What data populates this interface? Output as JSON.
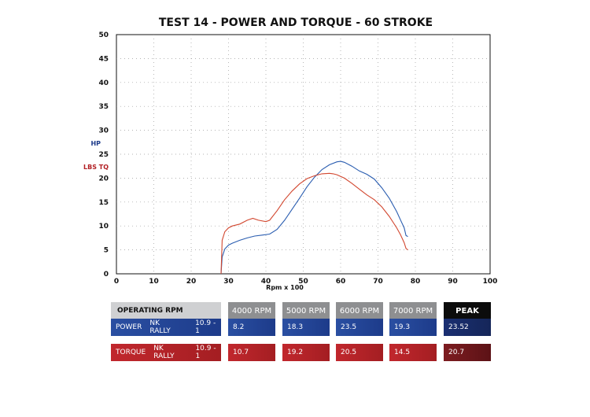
{
  "chart_data": {
    "type": "line",
    "title": "TEST 14 - POWER AND TORQUE - 60 STROKE",
    "xlabel": "Rpm x 100",
    "ylabel_power": "HP",
    "ylabel_torque": "LBS TQ",
    "xlim": [
      0,
      100
    ],
    "ylim": [
      0,
      50
    ],
    "xticks": [
      0,
      10,
      20,
      30,
      40,
      50,
      60,
      70,
      80,
      90,
      100
    ],
    "yticks": [
      0,
      5,
      10,
      15,
      20,
      25,
      30,
      35,
      40,
      45,
      50
    ],
    "grid": true,
    "series": [
      {
        "name": "HP",
        "color": "#2a5db0",
        "x": [
          28,
          28.3,
          29,
          30,
          31,
          33,
          35,
          37,
          39,
          41,
          43,
          45,
          47,
          49,
          51,
          53,
          55,
          57,
          59,
          60,
          61,
          63,
          65,
          67,
          69,
          71,
          73,
          75,
          76,
          77,
          77.5,
          78
        ],
        "y": [
          0,
          3.5,
          5.2,
          6.0,
          6.4,
          7.0,
          7.5,
          7.9,
          8.1,
          8.3,
          9.3,
          11.2,
          13.5,
          15.8,
          18.2,
          20.2,
          21.8,
          22.8,
          23.4,
          23.5,
          23.3,
          22.5,
          21.5,
          20.8,
          19.8,
          18.0,
          15.8,
          13.0,
          11.3,
          9.6,
          8.0,
          7.8
        ]
      },
      {
        "name": "LBS TQ",
        "color": "#d2472f",
        "x": [
          28,
          28.3,
          29,
          30,
          31,
          33,
          35,
          36.5,
          38,
          40,
          41,
          43,
          45,
          47,
          49,
          51,
          53,
          55,
          57,
          58,
          59,
          61,
          63,
          65,
          67,
          69,
          71,
          73,
          75,
          76,
          77,
          77.5,
          78
        ],
        "y": [
          0,
          7.0,
          8.8,
          9.6,
          10.0,
          10.4,
          11.2,
          11.6,
          11.2,
          10.9,
          11.2,
          13.2,
          15.5,
          17.3,
          18.8,
          19.9,
          20.5,
          20.9,
          21.0,
          20.9,
          20.7,
          20.0,
          18.9,
          17.7,
          16.5,
          15.5,
          14.0,
          12.0,
          9.6,
          8.2,
          6.5,
          5.3,
          5.0
        ]
      }
    ]
  },
  "table": {
    "header": {
      "operating": "OPERATING RPM",
      "rpm_4000": "4000 RPM",
      "rpm_5000": "5000 RPM",
      "rpm_6000": "6000 RPM",
      "rpm_7000": "7000 RPM",
      "peak": "PEAK"
    },
    "power": {
      "label": "POWER",
      "brand": "NK RALLY",
      "ratio": "10.9 - 1",
      "v4000": "8.2",
      "v5000": "18.3",
      "v6000": "23.5",
      "v7000": "19.3",
      "peak": "23.52"
    },
    "torque": {
      "label": "TORQUE",
      "brand": "NK RALLY",
      "ratio": "10.9 - 1",
      "v4000": "10.7",
      "v5000": "19.2",
      "v6000": "20.5",
      "v7000": "14.5",
      "peak": "20.7"
    }
  }
}
